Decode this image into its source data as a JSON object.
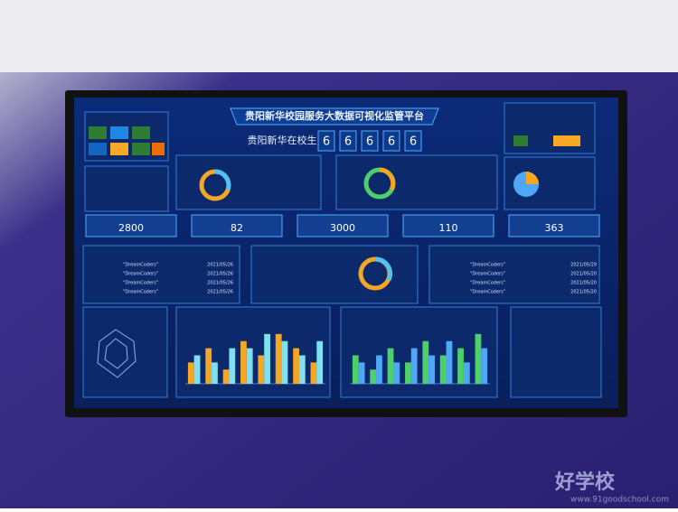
{
  "header": {
    "title": "贵阳新华校园服务大数据可视化监管平台",
    "students_label": "贵阳新华在校生",
    "student_digits": [
      "6",
      "6",
      "6",
      "6",
      "6"
    ]
  },
  "kpis": [
    2800,
    82,
    3000,
    110,
    363
  ],
  "left_list": {
    "items": [
      {
        "text": "“DreamCoders”",
        "date": "2021/05/26"
      },
      {
        "text": "“DreamCoders”",
        "date": "2021/05/26"
      },
      {
        "text": "“DreamCoders”",
        "date": "2021/05/26"
      },
      {
        "text": "“DreamCoders”",
        "date": "2021/05/26"
      }
    ]
  },
  "right_list": {
    "items": [
      {
        "text": "“DreamCoders”",
        "date": "2021/05/29"
      },
      {
        "text": "“DreamCoders”",
        "date": "2021/05/20"
      },
      {
        "text": "“DreamCoders”",
        "date": "2021/05/20"
      },
      {
        "text": "“DreamCoders”",
        "date": "2021/05/20"
      }
    ]
  },
  "bar_chart_1": {
    "ylim": [
      0,
      8
    ],
    "series": [
      {
        "color": "#f5a623",
        "values": [
          3,
          5,
          2,
          6,
          4,
          7,
          5,
          3
        ]
      },
      {
        "color": "#7fe0f0",
        "values": [
          4,
          3,
          5,
          5,
          7,
          6,
          4,
          6
        ]
      }
    ]
  },
  "bar_chart_2": {
    "ylim": [
      0,
      8
    ],
    "series": [
      {
        "color": "#4dd06a",
        "values": [
          4,
          2,
          5,
          3,
          6,
          4,
          5,
          7
        ]
      },
      {
        "color": "#4fa8f7",
        "values": [
          3,
          4,
          3,
          5,
          4,
          6,
          3,
          5
        ]
      }
    ]
  },
  "watermark": {
    "brand": "好学校",
    "url": "www.91goodschool.com"
  }
}
